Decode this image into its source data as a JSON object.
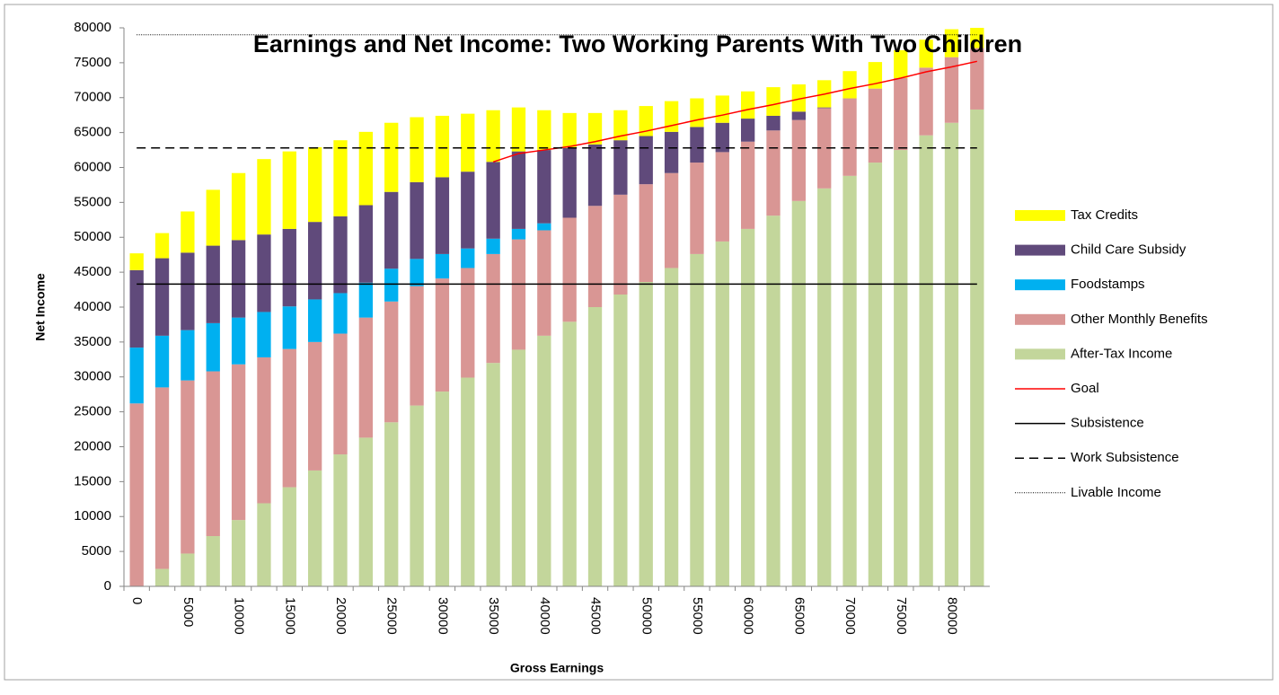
{
  "chart_data": {
    "type": "bar",
    "stacked": true,
    "title": "Earnings and Net Income: Two Working Parents With Two Children",
    "x_label": "Gross Earnings",
    "y_label": "Net Income",
    "categories": [
      0,
      null,
      5000,
      null,
      10000,
      null,
      15000,
      null,
      20000,
      null,
      25000,
      null,
      30000,
      null,
      35000,
      null,
      40000,
      null,
      45000,
      null,
      50000,
      null,
      55000,
      null,
      60000,
      null,
      65000,
      null,
      70000,
      null,
      75000,
      null,
      80000,
      null
    ],
    "ylim": [
      0,
      80000
    ],
    "yticks": [
      0,
      5000,
      10000,
      15000,
      20000,
      25000,
      30000,
      35000,
      40000,
      45000,
      50000,
      55000,
      60000,
      65000,
      70000,
      75000,
      80000
    ],
    "series": [
      {
        "name": "Tax Credits",
        "kind": "bar",
        "color": "#ffff00",
        "values": [
          2400,
          3600,
          5900,
          8000,
          9600,
          10800,
          11100,
          10700,
          10900,
          10500,
          9900,
          9300,
          8800,
          8300,
          7400,
          6300,
          5700,
          5000,
          4500,
          4300,
          4300,
          4400,
          4100,
          3900,
          3900,
          4100,
          3900,
          3900,
          3900,
          3800,
          4000,
          4000,
          4000,
          4000
        ]
      },
      {
        "name": "Child Care Subsidy",
        "kind": "bar",
        "color": "#604a7b",
        "values": [
          11100,
          11100,
          11100,
          11100,
          11100,
          11100,
          11100,
          11100,
          11000,
          11100,
          11000,
          11000,
          11000,
          11000,
          11000,
          11100,
          10500,
          10000,
          8800,
          7800,
          6900,
          5900,
          5100,
          4200,
          3300,
          2100,
          1200,
          100,
          0,
          0,
          0,
          0,
          0,
          0
        ]
      },
      {
        "name": "Foodstamps",
        "kind": "bar",
        "color": "#00b0f0",
        "values": [
          8000,
          7400,
          7200,
          6900,
          6700,
          6500,
          6100,
          6100,
          5800,
          5000,
          4700,
          3900,
          3500,
          2800,
          2200,
          1500,
          1000,
          0,
          0,
          0,
          0,
          0,
          0,
          0,
          0,
          0,
          0,
          0,
          0,
          0,
          0,
          0,
          0,
          0
        ]
      },
      {
        "name": "Other Monthly Benefits",
        "kind": "bar",
        "color": "#d99694",
        "values": [
          26200,
          26000,
          24800,
          23600,
          22300,
          20900,
          19800,
          18400,
          17300,
          17200,
          17300,
          17100,
          16200,
          15700,
          15600,
          15800,
          15100,
          14900,
          14500,
          14300,
          14000,
          13600,
          13100,
          12800,
          12500,
          12200,
          11600,
          11500,
          11100,
          10600,
          10300,
          9700,
          9400,
          8800
        ]
      },
      {
        "name": "After-Tax Income",
        "kind": "bar",
        "color": "#c3d69b",
        "values": [
          0,
          2500,
          4700,
          7200,
          9500,
          11900,
          14200,
          16600,
          18900,
          21300,
          23500,
          25900,
          27900,
          29900,
          32000,
          33900,
          35900,
          37900,
          40000,
          41800,
          43600,
          45600,
          47600,
          49400,
          51200,
          53100,
          55200,
          57000,
          58800,
          60700,
          62500,
          64600,
          66400,
          68300
        ]
      },
      {
        "name": "Goal",
        "kind": "line",
        "dash": "solid",
        "color": "#ff0000",
        "values": [
          null,
          null,
          null,
          null,
          null,
          null,
          null,
          null,
          null,
          null,
          null,
          null,
          null,
          null,
          60800,
          62000,
          62500,
          63000,
          63700,
          64500,
          65200,
          66000,
          66800,
          67500,
          68300,
          69000,
          69800,
          70500,
          71300,
          72000,
          72800,
          73700,
          74400,
          75200
        ]
      },
      {
        "name": "Subsistence",
        "kind": "line",
        "dash": "solid",
        "color": "#000000",
        "values": [
          43300,
          43300,
          43300,
          43300,
          43300,
          43300,
          43300,
          43300,
          43300,
          43300,
          43300,
          43300,
          43300,
          43300,
          43300,
          43300,
          43300,
          43300,
          43300,
          43300,
          43300,
          43300,
          43300,
          43300,
          43300,
          43300,
          43300,
          43300,
          43300,
          43300,
          43300,
          43300,
          43300,
          43300
        ]
      },
      {
        "name": "Work Subsistence",
        "kind": "line",
        "dash": "dashed",
        "color": "#000000",
        "values": [
          62800,
          62800,
          62800,
          62800,
          62800,
          62800,
          62800,
          62800,
          62800,
          62800,
          62800,
          62800,
          62800,
          62800,
          62800,
          62800,
          62800,
          62800,
          62800,
          62800,
          62800,
          62800,
          62800,
          62800,
          62800,
          62800,
          62800,
          62800,
          62800,
          62800,
          62800,
          62800,
          62800,
          62800
        ]
      },
      {
        "name": "Livable Income",
        "kind": "line",
        "dash": "dotted",
        "color": "#000000",
        "values": [
          79000,
          79000,
          79000,
          79000,
          79000,
          79000,
          79000,
          79000,
          79000,
          79000,
          79000,
          79000,
          79000,
          79000,
          79000,
          79000,
          79000,
          79000,
          79000,
          79000,
          79000,
          79000,
          79000,
          79000,
          79000,
          79000,
          79000,
          79000,
          79000,
          79000,
          79000,
          79000,
          79000,
          79000
        ]
      }
    ]
  }
}
